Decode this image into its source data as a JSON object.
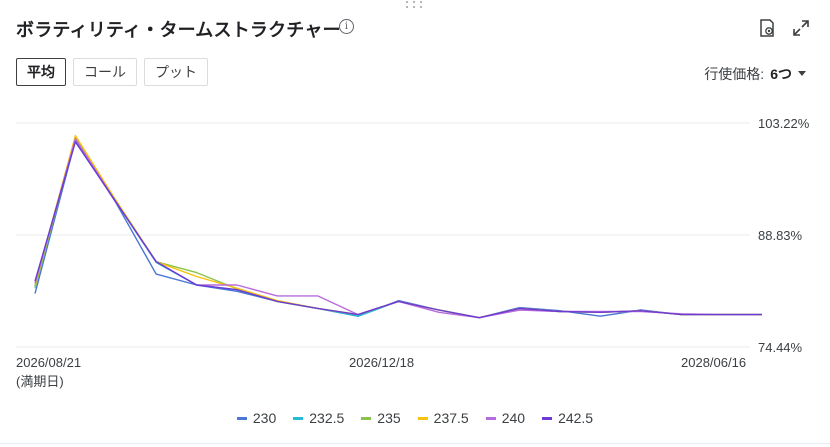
{
  "header": {
    "title": "ボラティリティ・タームストラクチャー",
    "info_glyph": "i"
  },
  "tabs": [
    {
      "label": "平均",
      "active": true
    },
    {
      "label": "コール",
      "active": false
    },
    {
      "label": "プット",
      "active": false
    }
  ],
  "strike_selector": {
    "label": "行使価格:",
    "value": "6つ"
  },
  "chart_data": {
    "type": "line",
    "x_labels": [
      "2026/08/21",
      "2026/12/18",
      "2028/06/16"
    ],
    "x_label_note": "(満期日)",
    "y_ticks": [
      "103.22%",
      "88.83%",
      "74.44%"
    ],
    "ylim": [
      74.44,
      103.22
    ],
    "grid": true,
    "legend_position": "bottom",
    "series": [
      {
        "name": "230",
        "color": "#4a76d4",
        "values": [
          81.3,
          101.0,
          93.0,
          83.8,
          82.4,
          81.6,
          80.3,
          79.4,
          78.4,
          80.4,
          79.2,
          78.2,
          79.5,
          79.1,
          78.4,
          79.2,
          78.6,
          78.6,
          78.6
        ]
      },
      {
        "name": "232.5",
        "color": "#22bcd4",
        "values": [
          82.2,
          101.2,
          93.1,
          85.3,
          82.4,
          81.8,
          80.3,
          79.4,
          78.4,
          80.3,
          79.2,
          78.2,
          79.4,
          79.0,
          78.9,
          79.1,
          78.6,
          78.6,
          78.6
        ]
      },
      {
        "name": "235",
        "color": "#8bc34a",
        "values": [
          82.0,
          101.3,
          93.3,
          85.4,
          84.0,
          81.9,
          80.3,
          79.4,
          78.6,
          80.3,
          79.2,
          78.2,
          79.4,
          79.0,
          78.9,
          79.1,
          78.6,
          78.6,
          78.6
        ]
      },
      {
        "name": "237.5",
        "color": "#f9c20a",
        "values": [
          82.4,
          101.6,
          93.3,
          85.4,
          83.5,
          82.0,
          80.4,
          79.4,
          78.6,
          80.3,
          79.2,
          78.2,
          79.4,
          79.0,
          78.9,
          79.1,
          78.6,
          78.6,
          78.6
        ]
      },
      {
        "name": "240",
        "color": "#b86bdc",
        "values": [
          82.6,
          101.2,
          93.1,
          85.4,
          82.4,
          82.4,
          81.0,
          81.0,
          78.6,
          80.3,
          78.9,
          78.2,
          79.2,
          79.0,
          79.0,
          79.0,
          78.7,
          78.6,
          78.6
        ]
      },
      {
        "name": "242.5",
        "color": "#6c3bd6",
        "values": [
          82.9,
          100.8,
          93.1,
          85.4,
          82.4,
          81.8,
          80.3,
          79.4,
          78.6,
          80.3,
          79.2,
          78.2,
          79.4,
          79.0,
          78.9,
          79.1,
          78.6,
          78.6,
          78.6
        ]
      }
    ]
  }
}
